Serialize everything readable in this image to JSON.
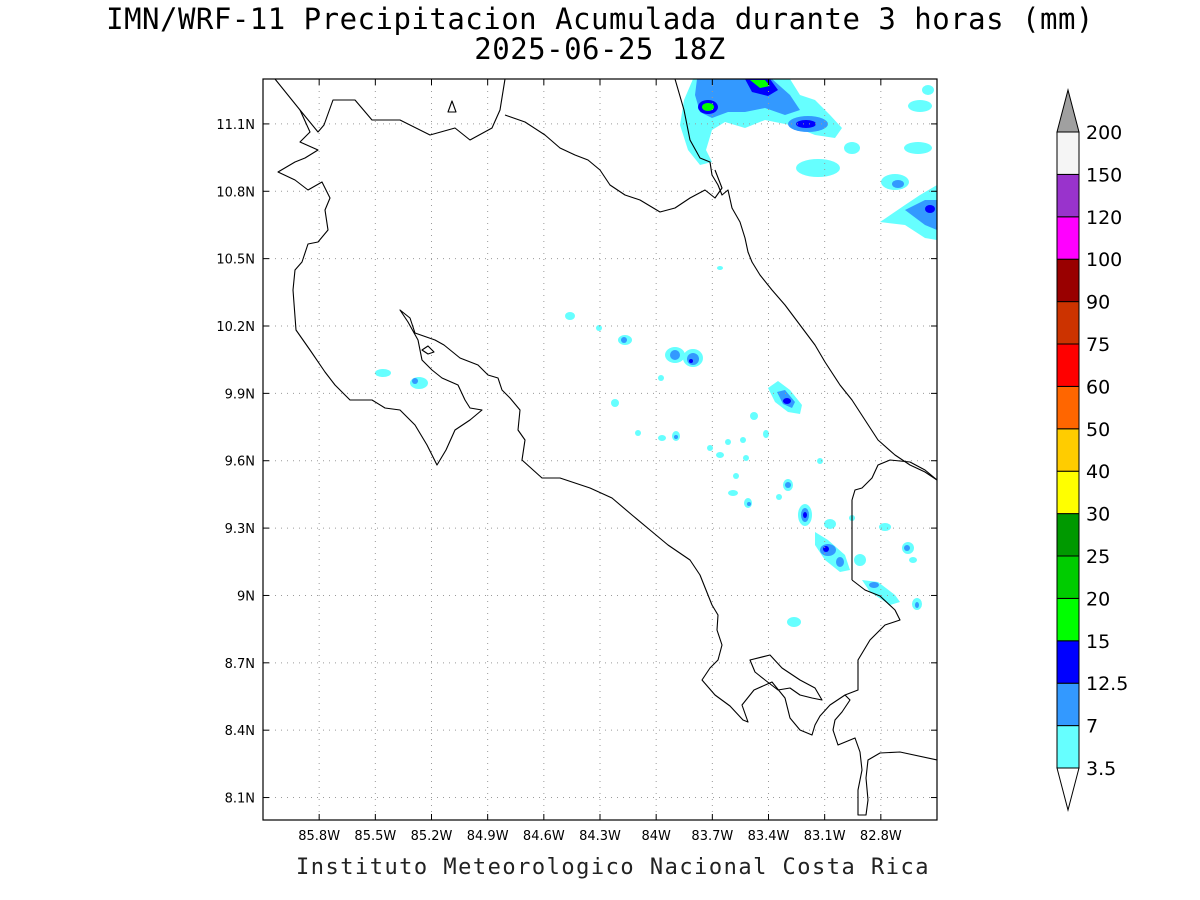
{
  "title": {
    "line1": "IMN/WRF-11 Precipitacion Acumulada durante 3 horas (mm)",
    "line2": "2025-06-25 18Z"
  },
  "footer": "Instituto Meteorologico Nacional Costa Rica",
  "map": {
    "lon_range": [
      -86.1,
      -82.5
    ],
    "lat_range": [
      8.0,
      11.3
    ],
    "lon_ticks": [
      "85.8W",
      "85.5W",
      "85.2W",
      "84.9W",
      "84.6W",
      "84.3W",
      "84W",
      "83.7W",
      "83.4W",
      "83.1W",
      "82.8W"
    ],
    "lat_ticks": [
      "11.1N",
      "10.8N",
      "10.5N",
      "10.2N",
      "9.9N",
      "9.6N",
      "9.3N",
      "9N",
      "8.7N",
      "8.4N",
      "8.1N"
    ],
    "grid": "dotted"
  },
  "colorbar": {
    "levels": [
      "3.5",
      "7",
      "12.5",
      "15",
      "20",
      "25",
      "30",
      "40",
      "50",
      "60",
      "75",
      "90",
      "100",
      "120",
      "150",
      "200"
    ],
    "colors": [
      "#66ffff",
      "#3399ff",
      "#0000ff",
      "#00ff00",
      "#00cc00",
      "#009900",
      "#ffff00",
      "#ffcc00",
      "#ff6600",
      "#ff0000",
      "#cc3300",
      "#990000",
      "#ff00ff",
      "#9933cc",
      "#f5f5f5"
    ],
    "max_arrow_color": "#a0a0a0",
    "min_arrow_color": "#ffffff"
  }
}
